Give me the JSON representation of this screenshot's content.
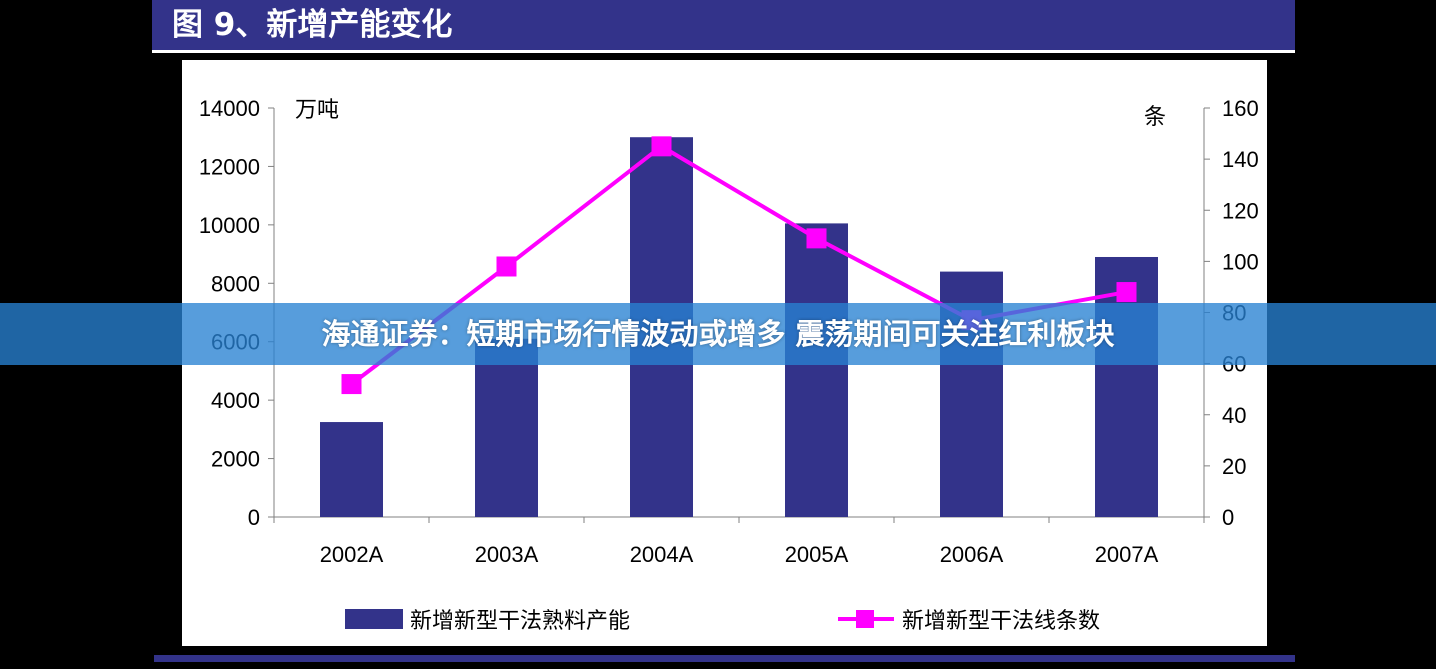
{
  "page": {
    "title": "图 9、新增产能变化",
    "banner": "海通证券：短期市场行情波动或增多 震荡期间可关注红利板块"
  },
  "colors": {
    "bar": "#33338a",
    "line": "#ff00ff",
    "title_bar": "#33338a",
    "banner": "#2882d2"
  },
  "chart_data": {
    "type": "bar",
    "categories": [
      "2002A",
      "2003A",
      "2004A",
      "2005A",
      "2006A",
      "2007A"
    ],
    "series": [
      {
        "name": "新增新型干法熟料产能",
        "type": "bar",
        "axis": "left",
        "values": [
          3250,
          6100,
          13000,
          10050,
          8400,
          8900
        ]
      },
      {
        "name": "新增新型干法线条数",
        "type": "line",
        "axis": "right",
        "marker": "square",
        "values": [
          52,
          98,
          145,
          109,
          77,
          88
        ]
      }
    ],
    "y_left": {
      "label": "万吨",
      "range": [
        0,
        14000
      ],
      "ticks": [
        0,
        2000,
        4000,
        6000,
        8000,
        10000,
        12000,
        14000
      ]
    },
    "y_right": {
      "label": "条",
      "range": [
        0,
        160
      ],
      "ticks": [
        0,
        20,
        40,
        60,
        80,
        100,
        120,
        140,
        160
      ]
    },
    "grid": false,
    "legend": "bottom"
  }
}
